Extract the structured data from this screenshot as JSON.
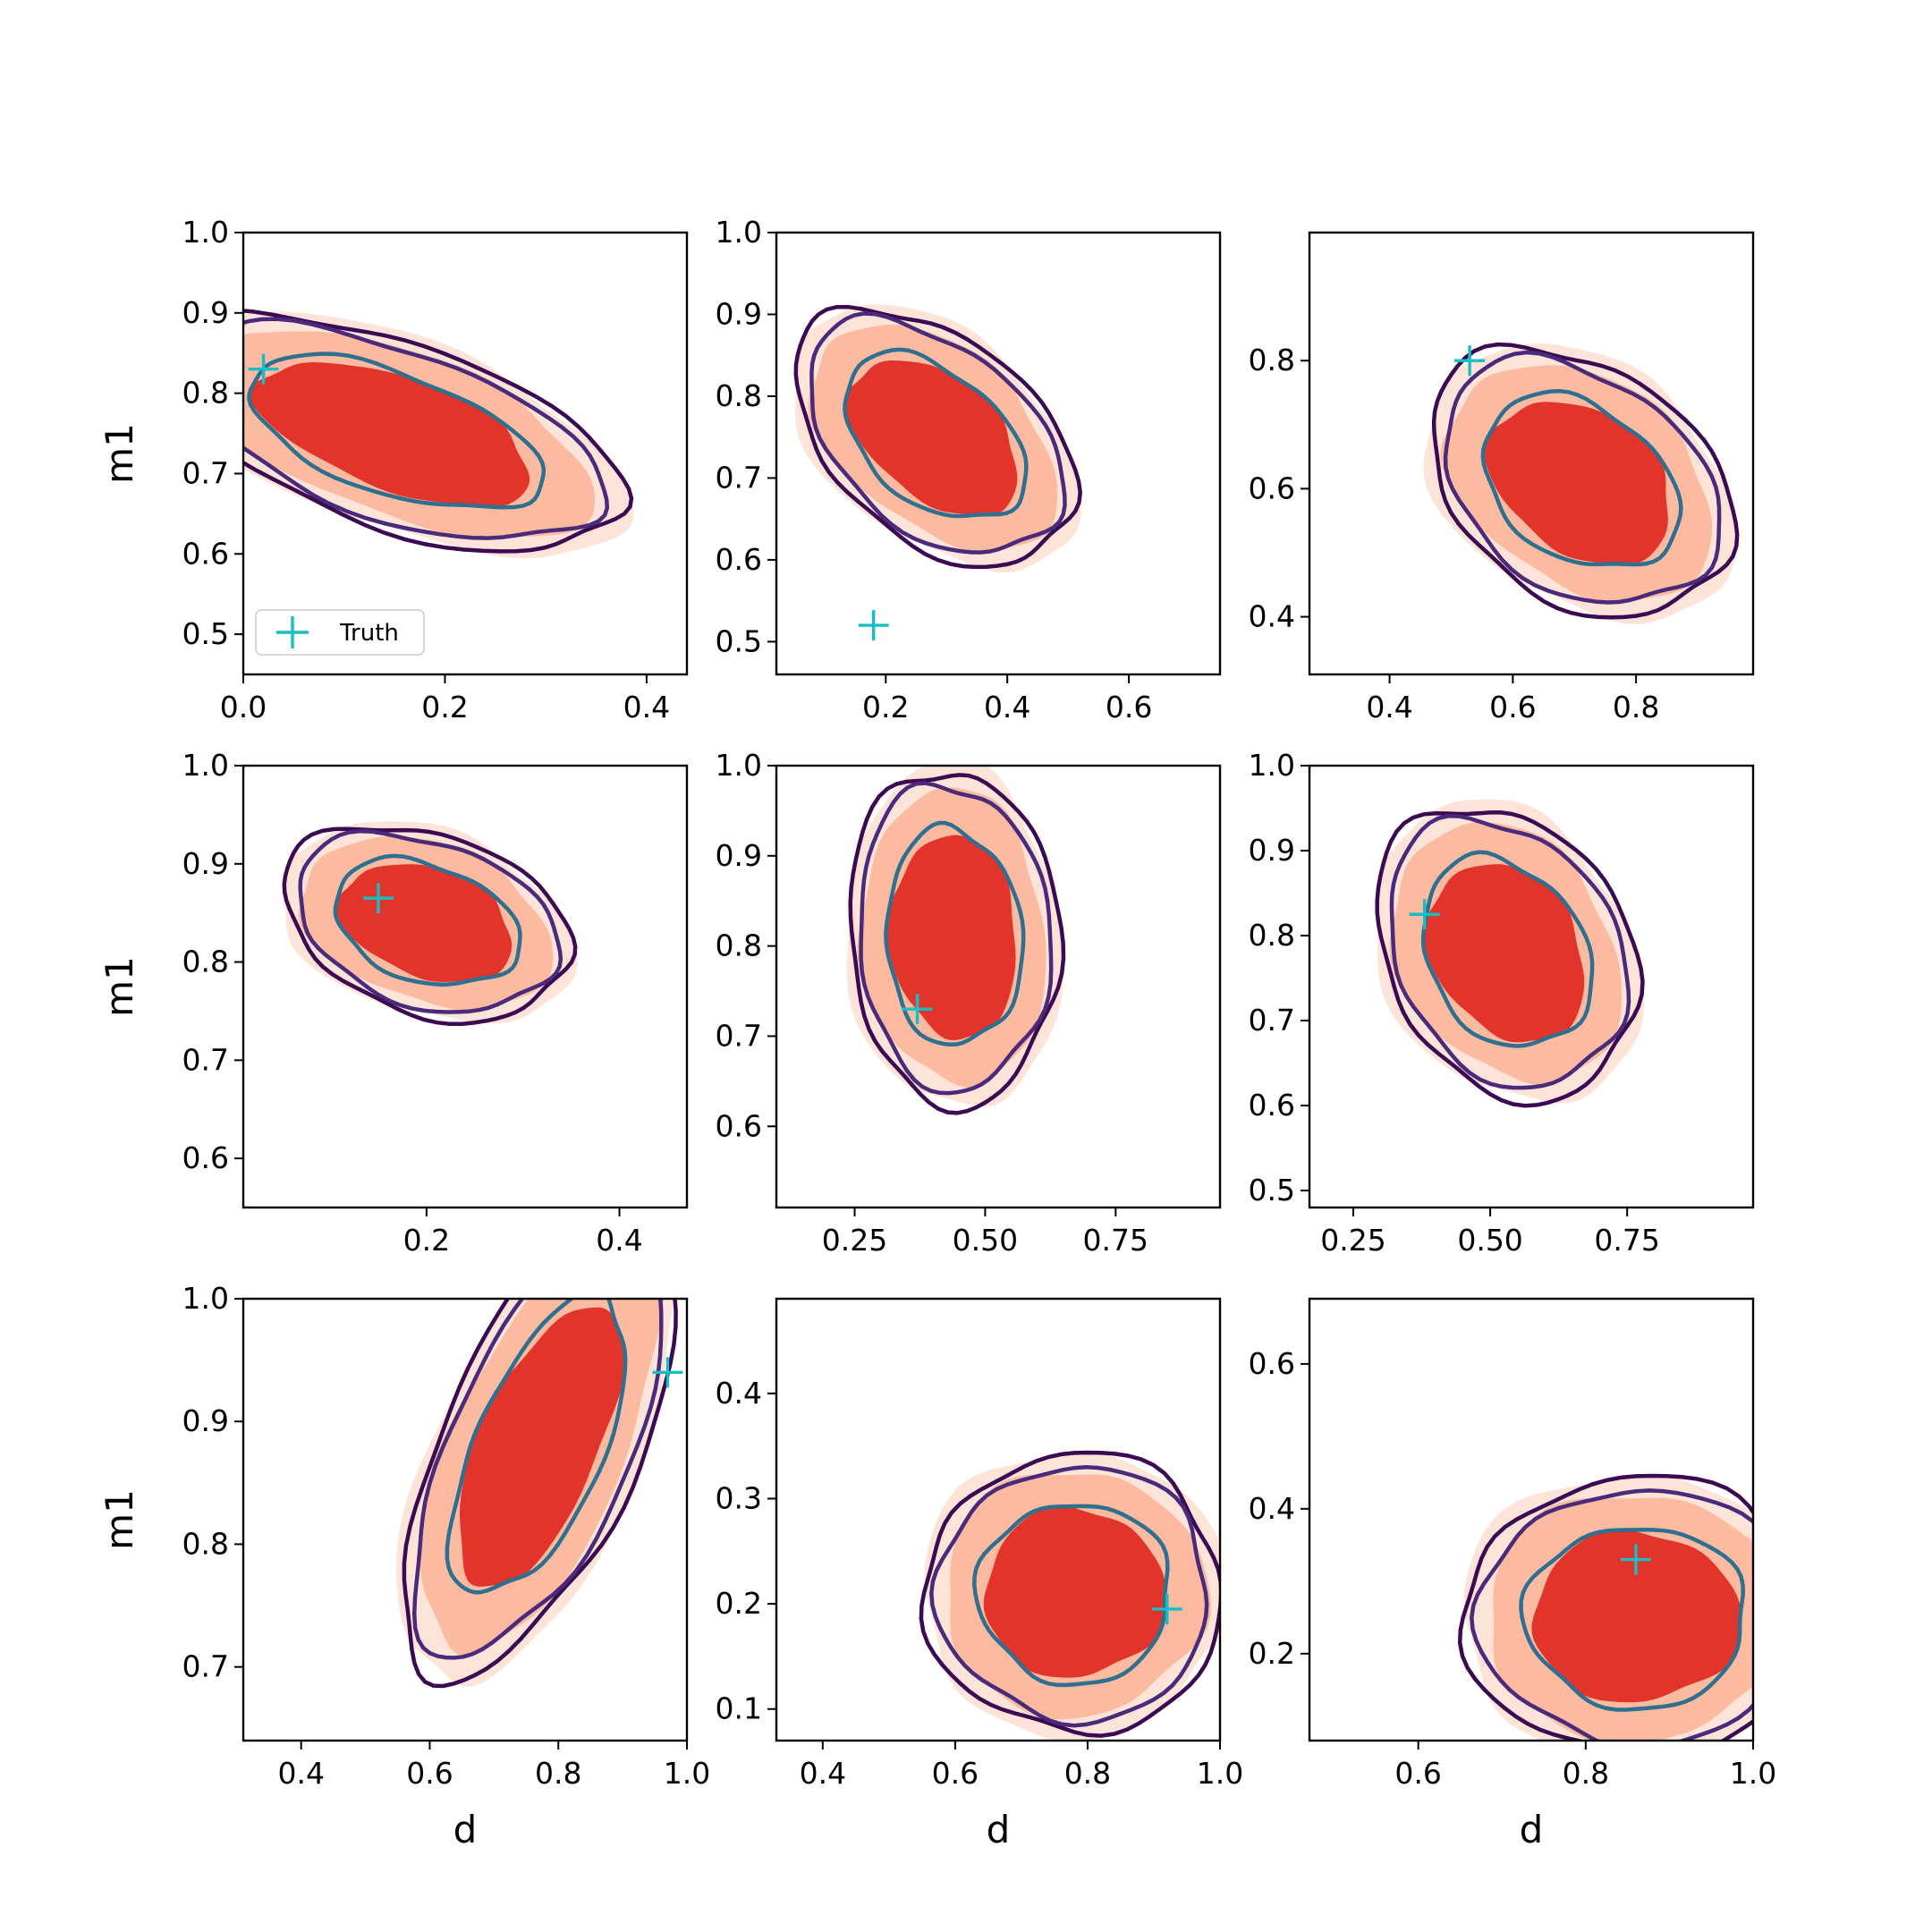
{
  "colors": {
    "fill_outer": "#fee4d8",
    "fill_mid": "#fcbba1",
    "fill_inner": "#e3342b",
    "contour_outer": "#3b0a52",
    "contour_mid": "#4a2a7a",
    "contour_inner": "#2f6f8f",
    "truth": "#17bfc4"
  },
  "legend": {
    "label": "Truth"
  },
  "chart_data": [
    {
      "type": "scatter",
      "title": "",
      "xlabel": "",
      "ylabel": "m1",
      "xlim": [
        0.0,
        0.44
      ],
      "ylim": [
        0.45,
        1.0
      ],
      "xticks": [
        "0.0",
        "0.2",
        "0.4"
      ],
      "yticks": [
        "0.5",
        "0.6",
        "0.7",
        "0.8",
        "0.9",
        "1.0"
      ],
      "truth": {
        "x": 0.02,
        "y": 0.83
      },
      "kde": {
        "cx": 0.15,
        "cy": 0.75,
        "sx": 0.11,
        "sy": 0.24,
        "ang": 64
      }
    },
    {
      "type": "scatter",
      "title": "",
      "xlabel": "",
      "ylabel": "",
      "xlim": [
        0.02,
        0.75
      ],
      "ylim": [
        0.46,
        1.0
      ],
      "xticks": [
        "0.2",
        "0.4",
        "0.6"
      ],
      "yticks": [
        "0.5",
        "0.6",
        "0.7",
        "0.8",
        "0.9",
        "1.0"
      ],
      "truth": {
        "x": 0.18,
        "y": 0.52
      },
      "kde": {
        "cx": 0.28,
        "cy": 0.75,
        "sx": 0.13,
        "sy": 0.24,
        "ang": 66
      }
    },
    {
      "type": "scatter",
      "title": "",
      "xlabel": "",
      "ylabel": "",
      "xlim": [
        0.27,
        0.99
      ],
      "ylim": [
        0.31,
        1.0
      ],
      "xticks": [
        "0.4",
        "0.6",
        "0.8"
      ],
      "yticks": [
        "0.4",
        "0.6",
        "0.8"
      ],
      "truth": {
        "x": 0.53,
        "y": 0.8
      },
      "kde": {
        "cx": 0.71,
        "cy": 0.61,
        "sx": 0.18,
        "sy": 0.26,
        "ang": 58
      }
    },
    {
      "type": "scatter",
      "title": "",
      "xlabel": "",
      "ylabel": "m1",
      "xlim": [
        0.01,
        0.47
      ],
      "ylim": [
        0.55,
        1.0
      ],
      "xticks": [
        "0.2",
        "0.4"
      ],
      "yticks": [
        "0.6",
        "0.7",
        "0.8",
        "0.9",
        "1.0"
      ],
      "truth": {
        "x": 0.15,
        "y": 0.865
      },
      "kde": {
        "cx": 0.2,
        "cy": 0.84,
        "sx": 0.09,
        "sy": 0.15,
        "ang": 72
      }
    },
    {
      "type": "scatter",
      "title": "",
      "xlabel": "",
      "ylabel": "",
      "xlim": [
        0.1,
        0.95
      ],
      "ylim": [
        0.51,
        1.0
      ],
      "xticks": [
        "0.25",
        "0.50",
        "0.75"
      ],
      "yticks": [
        "0.6",
        "0.7",
        "0.8",
        "0.9",
        "1.0"
      ],
      "truth": {
        "x": 0.37,
        "y": 0.73
      },
      "kde": {
        "cx": 0.44,
        "cy": 0.81,
        "sx": 0.18,
        "sy": 0.2,
        "ang": 70
      }
    },
    {
      "type": "scatter",
      "title": "",
      "xlabel": "",
      "ylabel": "",
      "xlim": [
        0.17,
        0.98
      ],
      "ylim": [
        0.48,
        1.0
      ],
      "xticks": [
        "0.25",
        "0.50",
        "0.75"
      ],
      "yticks": [
        "0.5",
        "0.6",
        "0.7",
        "0.8",
        "0.9",
        "1.0"
      ],
      "truth": {
        "x": 0.38,
        "y": 0.825
      },
      "kde": {
        "cx": 0.53,
        "cy": 0.78,
        "sx": 0.16,
        "sy": 0.24,
        "ang": 72
      }
    },
    {
      "type": "scatter",
      "title": "",
      "xlabel": "d",
      "ylabel": "m1",
      "xlim": [
        0.31,
        1.0
      ],
      "ylim": [
        0.64,
        1.0
      ],
      "xticks": [
        "0.4",
        "0.6",
        "0.8",
        "1.0"
      ],
      "yticks": [
        "0.7",
        "0.8",
        "0.9",
        "1.0"
      ],
      "truth": {
        "x": 0.97,
        "y": 0.94
      },
      "kde": {
        "cx": 0.77,
        "cy": 0.88,
        "sx": 0.25,
        "sy": 0.12,
        "ang": 40
      }
    },
    {
      "type": "scatter",
      "title": "",
      "xlabel": "d",
      "ylabel": "",
      "xlim": [
        0.33,
        1.0
      ],
      "ylim": [
        0.07,
        0.49
      ],
      "xticks": [
        "0.4",
        "0.6",
        "0.8",
        "1.0"
      ],
      "yticks": [
        "0.1",
        "0.2",
        "0.3",
        "0.4"
      ],
      "truth": {
        "x": 0.92,
        "y": 0.195
      },
      "kde": {
        "cx": 0.78,
        "cy": 0.21,
        "sx": 0.22,
        "sy": 0.13,
        "ang": 0
      }
    },
    {
      "type": "scatter",
      "title": "",
      "xlabel": "d",
      "ylabel": "",
      "xlim": [
        0.47,
        1.0
      ],
      "ylim": [
        0.08,
        0.69
      ],
      "xticks": [
        "0.6",
        "0.8",
        "1.0"
      ],
      "yticks": [
        "0.2",
        "0.4",
        "0.6"
      ],
      "truth": {
        "x": 0.86,
        "y": 0.33
      },
      "kde": {
        "cx": 0.86,
        "cy": 0.25,
        "sx": 0.2,
        "sy": 0.19,
        "ang": 0
      }
    }
  ]
}
